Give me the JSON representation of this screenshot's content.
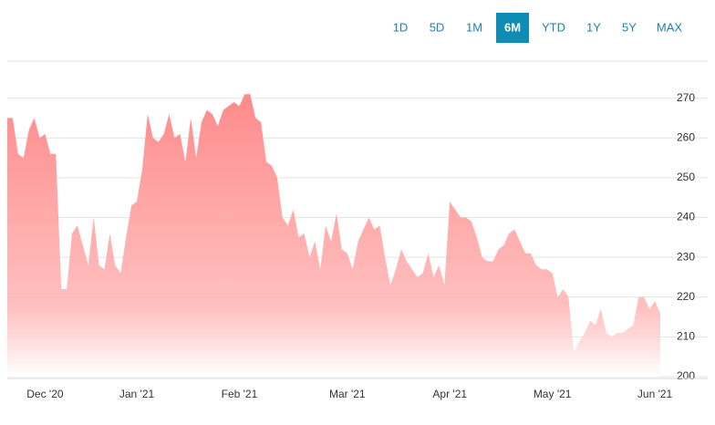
{
  "buttons": [
    "1D",
    "5D",
    "1M",
    "6M",
    "YTD",
    "1Y",
    "5Y",
    "MAX"
  ],
  "active_button": "6M",
  "chart_data": {
    "type": "area",
    "color": "#ff8c8c",
    "ylim": [
      200,
      280
    ],
    "yticks": [
      200,
      210,
      220,
      230,
      240,
      250,
      260,
      270
    ],
    "grid": true,
    "categories": [
      null,
      null,
      null,
      null,
      null,
      null,
      null,
      "Dec '20",
      null,
      null,
      null,
      null,
      null,
      null,
      null,
      null,
      null,
      null,
      null,
      null,
      null,
      null,
      null,
      null,
      "Jan '21",
      null,
      null,
      null,
      null,
      null,
      null,
      null,
      null,
      null,
      null,
      null,
      null,
      null,
      null,
      null,
      null,
      null,
      null,
      "Feb '21",
      null,
      null,
      null,
      null,
      null,
      null,
      null,
      null,
      null,
      null,
      null,
      null,
      null,
      null,
      null,
      null,
      null,
      null,
      null,
      "Mar '21",
      null,
      null,
      null,
      null,
      null,
      null,
      null,
      null,
      null,
      null,
      null,
      null,
      null,
      null,
      null,
      null,
      null,
      null,
      "Apr '21",
      null,
      null,
      null,
      null,
      null,
      null,
      null,
      null,
      null,
      null,
      null,
      null,
      null,
      null,
      null,
      null,
      null,
      null,
      "May '21",
      null,
      null,
      null,
      null,
      null,
      null,
      null,
      null,
      null,
      null,
      null,
      null,
      null,
      null,
      null,
      null,
      null,
      null,
      "Jun '21",
      null
    ],
    "values": [
      265,
      265,
      256,
      255,
      262,
      265,
      260,
      261,
      256,
      256,
      222,
      222,
      236,
      238,
      233,
      228,
      240,
      228,
      227,
      236,
      228,
      226,
      235,
      243,
      244,
      252,
      266,
      260,
      259,
      261,
      266,
      260,
      261,
      254,
      265,
      255,
      264,
      267,
      266,
      263,
      267,
      268,
      269,
      268,
      271,
      271,
      265,
      264,
      254,
      253,
      250,
      240,
      238,
      242,
      235,
      236,
      230,
      234,
      227,
      238,
      234,
      241,
      232,
      231,
      227,
      234,
      237,
      240,
      237,
      238,
      230,
      223,
      227,
      232,
      229,
      227,
      225,
      226,
      231,
      225,
      228,
      223,
      244,
      242,
      240,
      240,
      239,
      235,
      230,
      229,
      229,
      232,
      233,
      236,
      237,
      234,
      231,
      231,
      228,
      227,
      227,
      226,
      220,
      222,
      220,
      206,
      209,
      211,
      214,
      213,
      217,
      211,
      210,
      211,
      211,
      212,
      213,
      220,
      220,
      217,
      219,
      216
    ]
  }
}
